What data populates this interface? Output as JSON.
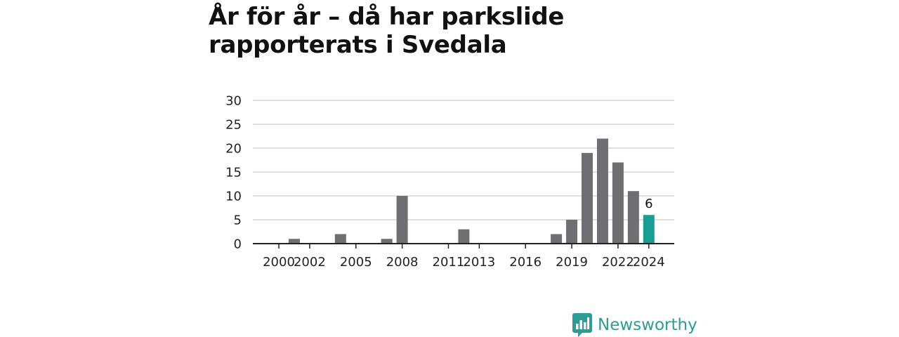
{
  "chart_data": {
    "type": "bar",
    "title": "År för år – då har parkslide rapporterats i Svedala",
    "x": [
      2000,
      2001,
      2002,
      2003,
      2004,
      2005,
      2006,
      2007,
      2008,
      2009,
      2010,
      2011,
      2012,
      2013,
      2014,
      2015,
      2016,
      2017,
      2018,
      2019,
      2020,
      2021,
      2022,
      2023,
      2024
    ],
    "values": [
      0,
      1,
      0,
      0,
      2,
      0,
      0,
      1,
      10,
      0,
      0,
      0,
      3,
      0,
      0,
      0,
      0,
      0,
      2,
      5,
      19,
      22,
      17,
      11,
      6
    ],
    "x_tick_labels": [
      "2000",
      "2002",
      "2005",
      "2008",
      "2011",
      "2013",
      "2016",
      "2019",
      "2022",
      "2024"
    ],
    "y_tick_labels": [
      "0",
      "5",
      "10",
      "15",
      "20",
      "25",
      "30"
    ],
    "ylim": [
      0,
      30
    ],
    "xlabel": "",
    "ylabel": "",
    "grid": true,
    "highlight": {
      "x": 2024,
      "label": "6",
      "color": "#1a9e94"
    },
    "bar_color": "#6f6e73"
  },
  "brand": {
    "name": "Newsworthy",
    "icon": "newsworthy-logo-icon",
    "color": "#2a9d96"
  }
}
